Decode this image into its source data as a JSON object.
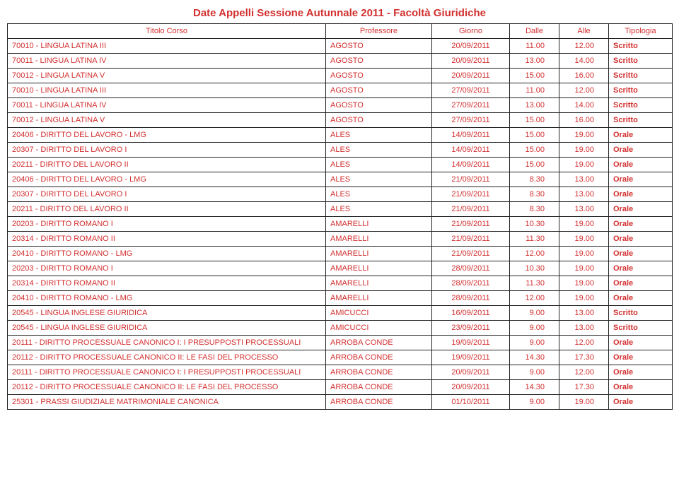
{
  "title": "Date Appelli Sessione Autunnale 2011 - Facoltà Giuridiche",
  "columns": [
    "Titolo Corso",
    "Professore",
    "Giorno",
    "Dalle",
    "Alle",
    "Tipologia"
  ],
  "rows": [
    {
      "course": "70010 - LINGUA LATINA III",
      "prof": "AGOSTO",
      "day": "20/09/2011",
      "from": "11.00",
      "to": "12.00",
      "type": "Scritto"
    },
    {
      "course": "70011 - LINGUA LATINA IV",
      "prof": "AGOSTO",
      "day": "20/09/2011",
      "from": "13.00",
      "to": "14.00",
      "type": "Scritto"
    },
    {
      "course": "70012 - LINGUA LATINA V",
      "prof": "AGOSTO",
      "day": "20/09/2011",
      "from": "15.00",
      "to": "16.00",
      "type": "Scritto"
    },
    {
      "course": "70010 - LINGUA LATINA III",
      "prof": "AGOSTO",
      "day": "27/09/2011",
      "from": "11.00",
      "to": "12.00",
      "type": "Scritto"
    },
    {
      "course": "70011 - LINGUA LATINA IV",
      "prof": "AGOSTO",
      "day": "27/09/2011",
      "from": "13.00",
      "to": "14.00",
      "type": "Scritto"
    },
    {
      "course": "70012 - LINGUA LATINA V",
      "prof": "AGOSTO",
      "day": "27/09/2011",
      "from": "15.00",
      "to": "16.00",
      "type": "Scritto"
    },
    {
      "course": "20406 - DIRITTO DEL LAVORO - LMG",
      "prof": "ALES",
      "day": "14/09/2011",
      "from": "15.00",
      "to": "19.00",
      "type": "Orale"
    },
    {
      "course": "20307 - DIRITTO DEL LAVORO I",
      "prof": "ALES",
      "day": "14/09/2011",
      "from": "15.00",
      "to": "19.00",
      "type": "Orale"
    },
    {
      "course": "20211 - DIRITTO DEL LAVORO II",
      "prof": "ALES",
      "day": "14/09/2011",
      "from": "15.00",
      "to": "19.00",
      "type": "Orale"
    },
    {
      "course": "20406 - DIRITTO DEL LAVORO - LMG",
      "prof": "ALES",
      "day": "21/09/2011",
      "from": "8.30",
      "to": "13.00",
      "type": "Orale"
    },
    {
      "course": "20307 - DIRITTO DEL LAVORO I",
      "prof": "ALES",
      "day": "21/09/2011",
      "from": "8.30",
      "to": "13.00",
      "type": "Orale"
    },
    {
      "course": "20211 - DIRITTO DEL LAVORO II",
      "prof": "ALES",
      "day": "21/09/2011",
      "from": "8.30",
      "to": "13.00",
      "type": "Orale"
    },
    {
      "course": "20203 - DIRITTO ROMANO I",
      "prof": "AMARELLI",
      "day": "21/09/2011",
      "from": "10.30",
      "to": "19.00",
      "type": "Orale"
    },
    {
      "course": "20314 - DIRITTO ROMANO II",
      "prof": "AMARELLI",
      "day": "21/09/2011",
      "from": "11.30",
      "to": "19.00",
      "type": "Orale"
    },
    {
      "course": "20410 - DIRITTO ROMANO - LMG",
      "prof": "AMARELLI",
      "day": "21/09/2011",
      "from": "12.00",
      "to": "19.00",
      "type": "Orale"
    },
    {
      "course": "20203 - DIRITTO ROMANO I",
      "prof": "AMARELLI",
      "day": "28/09/2011",
      "from": "10.30",
      "to": "19.00",
      "type": "Orale"
    },
    {
      "course": "20314 - DIRITTO ROMANO II",
      "prof": "AMARELLI",
      "day": "28/09/2011",
      "from": "11.30",
      "to": "19.00",
      "type": "Orale"
    },
    {
      "course": "20410 - DIRITTO ROMANO - LMG",
      "prof": "AMARELLI",
      "day": "28/09/2011",
      "from": "12.00",
      "to": "19.00",
      "type": "Orale"
    },
    {
      "course": "20545 - LINGUA INGLESE GIURIDICA",
      "prof": "AMICUCCI",
      "day": "16/09/2011",
      "from": "9.00",
      "to": "13.00",
      "type": "Scritto"
    },
    {
      "course": "20545 - LINGUA INGLESE GIURIDICA",
      "prof": "AMICUCCI",
      "day": "23/09/2011",
      "from": "9.00",
      "to": "13.00",
      "type": "Scritto"
    },
    {
      "course": "20111 - DIRITTO PROCESSUALE CANONICO I: I PRESUPPOSTI PROCESSUALI",
      "prof": "ARROBA CONDE",
      "day": "19/09/2011",
      "from": "9.00",
      "to": "12.00",
      "type": "Orale"
    },
    {
      "course": "20112 - DIRITTO PROCESSUALE CANONICO II: LE FASI DEL PROCESSO",
      "prof": "ARROBA CONDE",
      "day": "19/09/2011",
      "from": "14.30",
      "to": "17.30",
      "type": "Orale"
    },
    {
      "course": "20111 - DIRITTO PROCESSUALE CANONICO I: I PRESUPPOSTI PROCESSUALI",
      "prof": "ARROBA CONDE",
      "day": "20/09/2011",
      "from": "9.00",
      "to": "12.00",
      "type": "Orale"
    },
    {
      "course": "20112 - DIRITTO PROCESSUALE CANONICO II: LE FASI DEL PROCESSO",
      "prof": "ARROBA CONDE",
      "day": "20/09/2011",
      "from": "14.30",
      "to": "17.30",
      "type": "Orale"
    },
    {
      "course": "25301 - PRASSI GIUDIZIALE MATRIMONIALE CANONICA",
      "prof": "ARROBA CONDE",
      "day": "01/10/2011",
      "from": "9.00",
      "to": "19.00",
      "type": "Orale"
    }
  ]
}
